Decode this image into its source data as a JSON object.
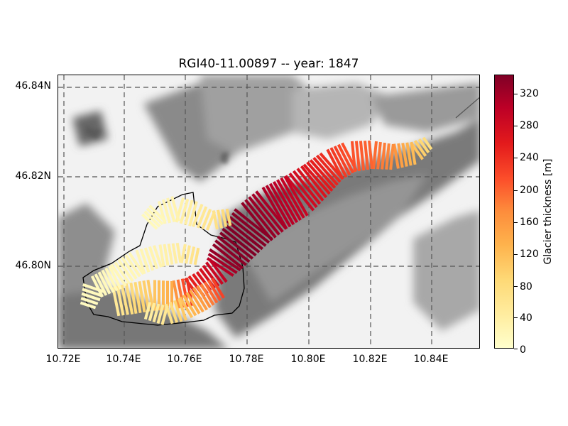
{
  "title": "RGI40-11.00897 -- year: 1847",
  "x_ticks": [
    "10.72E",
    "10.74E",
    "10.76E",
    "10.78E",
    "10.80E",
    "10.82E",
    "10.84E"
  ],
  "y_ticks": [
    "46.84N",
    "46.82N",
    "46.80N"
  ],
  "colorbar": {
    "label": "Glacier thickness [m]",
    "ticks": [
      "0",
      "40",
      "80",
      "120",
      "160",
      "200",
      "240",
      "280",
      "320"
    ],
    "cmap": "YlOrRd"
  },
  "colors": {
    "hillshade_dark": "#6e6e6e",
    "outline": "#000000",
    "grid": "#555555"
  }
}
